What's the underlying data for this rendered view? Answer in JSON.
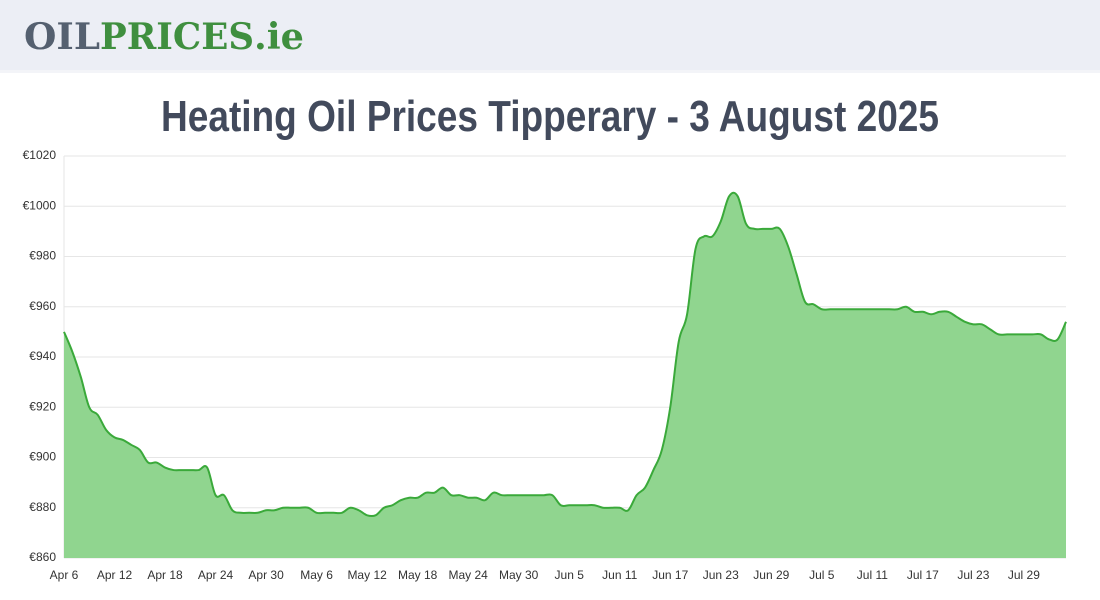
{
  "header": {
    "logo": {
      "part1": "OIL",
      "part2": "PRICES",
      "part3": ".ie"
    }
  },
  "chart_data": {
    "type": "area",
    "title": "Heating Oil Prices Tipperary - 3 August 2025",
    "categories": [
      "Apr 6",
      null,
      null,
      null,
      null,
      null,
      "Apr 12",
      null,
      null,
      null,
      null,
      null,
      "Apr 18",
      null,
      null,
      null,
      null,
      null,
      "Apr 24",
      null,
      null,
      null,
      null,
      null,
      "Apr 30",
      null,
      null,
      null,
      null,
      null,
      "May 6",
      null,
      null,
      null,
      null,
      null,
      "May 12",
      null,
      null,
      null,
      null,
      null,
      "May 18",
      null,
      null,
      null,
      null,
      null,
      "May 24",
      null,
      null,
      null,
      null,
      null,
      "May 30",
      null,
      null,
      null,
      null,
      null,
      "Jun 5",
      null,
      null,
      null,
      null,
      null,
      "Jun 11",
      null,
      null,
      null,
      null,
      null,
      "Jun 17",
      null,
      null,
      null,
      null,
      null,
      "Jun 23",
      null,
      null,
      null,
      null,
      null,
      "Jun 29",
      null,
      null,
      null,
      null,
      null,
      "Jul 5",
      null,
      null,
      null,
      null,
      null,
      "Jul 11",
      null,
      null,
      null,
      null,
      null,
      "Jul 17",
      null,
      null,
      null,
      null,
      null,
      "Jul 23",
      null,
      null,
      null,
      null,
      null,
      "Jul 29",
      null,
      null,
      null,
      null,
      null
    ],
    "values": [
      950,
      942,
      932,
      920,
      917,
      911,
      908,
      907,
      905,
      903,
      898,
      898,
      896,
      895,
      895,
      895,
      895,
      896,
      885,
      885,
      879,
      878,
      878,
      878,
      879,
      879,
      880,
      880,
      880,
      880,
      878,
      878,
      878,
      878,
      880,
      879,
      877,
      877,
      880,
      881,
      883,
      884,
      884,
      886,
      886,
      888,
      885,
      885,
      884,
      884,
      883,
      886,
      885,
      885,
      885,
      885,
      885,
      885,
      885,
      881,
      881,
      881,
      881,
      881,
      880,
      880,
      880,
      879,
      885,
      888,
      895,
      903,
      920,
      946,
      957,
      983,
      988,
      988,
      994,
      1004,
      1004,
      993,
      991,
      991,
      991,
      991,
      984,
      973,
      962,
      961,
      959,
      959,
      959,
      959,
      959,
      959,
      959,
      959,
      959,
      959,
      960,
      958,
      958,
      957,
      958,
      958,
      956,
      954,
      953,
      953,
      951,
      949,
      949,
      949,
      949,
      949,
      949,
      947,
      947,
      954
    ],
    "color": "#3aa93a",
    "fill": "#90d58f",
    "ylim": [
      860,
      1020
    ],
    "yticks": [
      {
        "value": 860,
        "label": "€860"
      },
      {
        "value": 880,
        "label": "€880"
      },
      {
        "value": 900,
        "label": "€900"
      },
      {
        "value": 920,
        "label": "€920"
      },
      {
        "value": 940,
        "label": "€940"
      },
      {
        "value": 960,
        "label": "€960"
      },
      {
        "value": 980,
        "label": "€980"
      },
      {
        "value": 1000,
        "label": "€1000"
      },
      {
        "value": 1020,
        "label": "€1020"
      }
    ],
    "grid": true
  }
}
